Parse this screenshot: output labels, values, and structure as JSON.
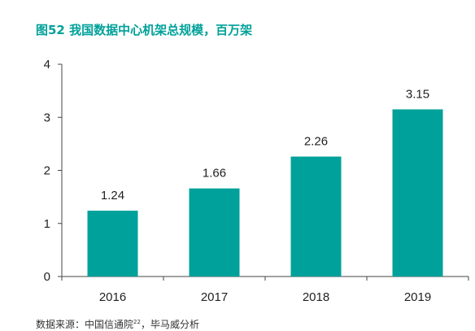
{
  "title": "图52  我国数据中心机架总规模，百万架",
  "source": {
    "prefix": "数据来源：中国信通院",
    "note": "22",
    "suffix": "，毕马威分析"
  },
  "colors": {
    "title": "#00a19a",
    "bar": "#00a19a",
    "axis": "#444444"
  },
  "chart_data": {
    "type": "bar",
    "categories": [
      "2016",
      "2017",
      "2018",
      "2019"
    ],
    "values": [
      1.24,
      1.66,
      2.26,
      3.15
    ],
    "data_labels": [
      "1.24",
      "1.66",
      "2.26",
      "3.15"
    ],
    "ylim": [
      0,
      4
    ],
    "yticks": [
      "0",
      "1",
      "2",
      "3",
      "4"
    ],
    "grid": false,
    "legend": "none"
  }
}
